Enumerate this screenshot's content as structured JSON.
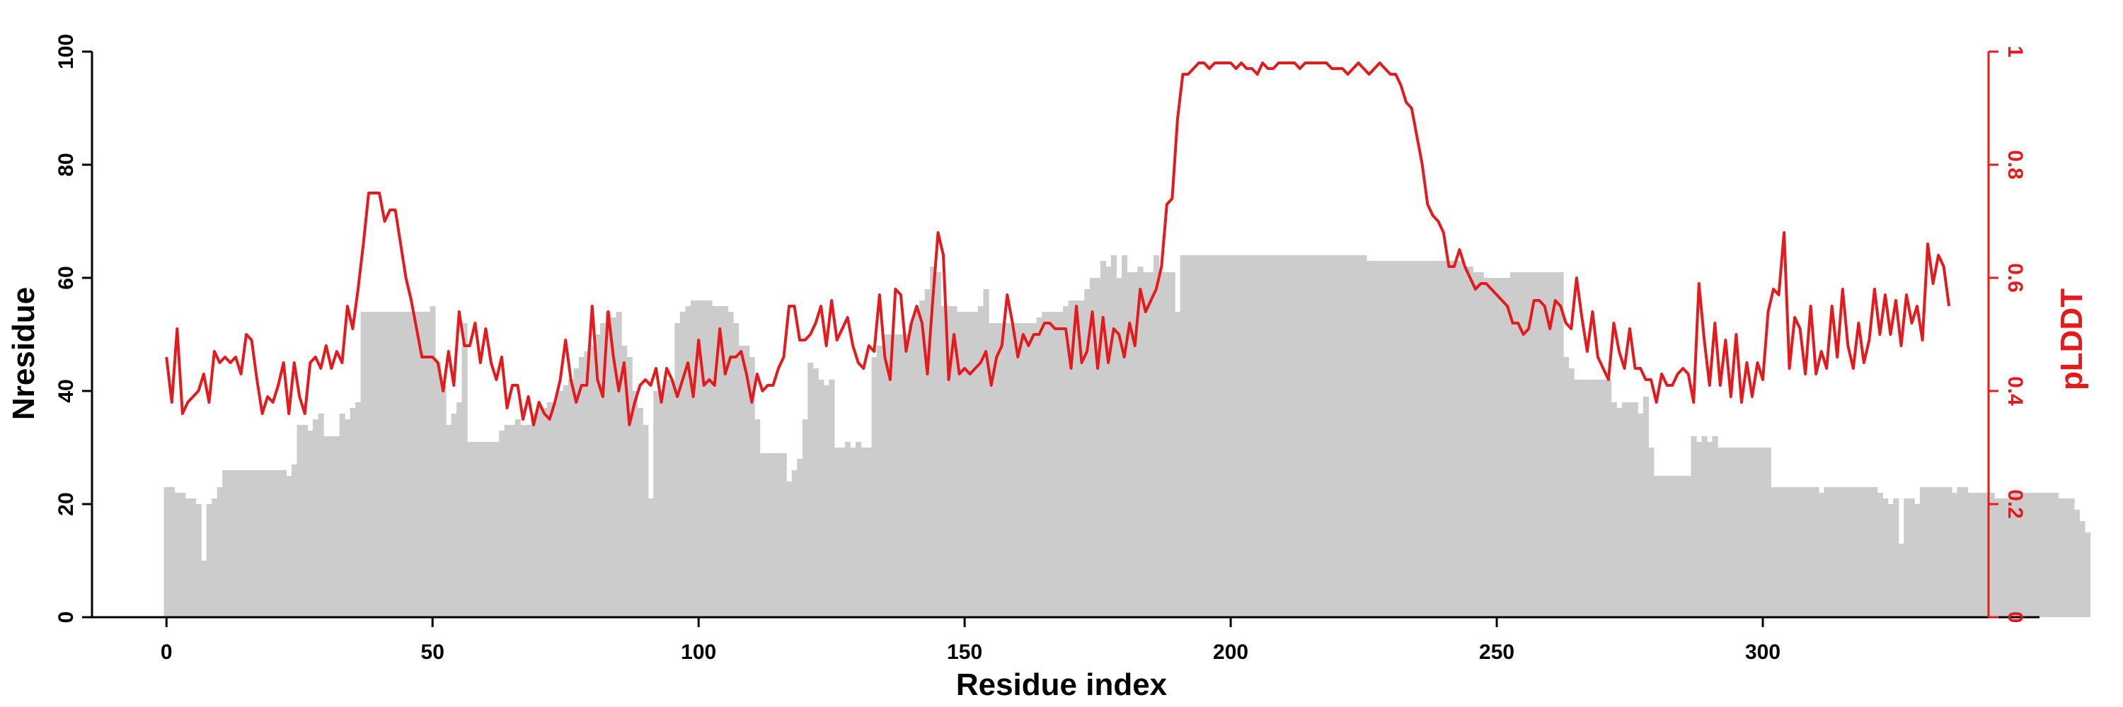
{
  "chart_data": {
    "type": "bar+line",
    "xlabel": "Residue index",
    "ylabel_left": "Nresidue",
    "ylabel_right": "pLDDT",
    "xlim": [
      -14,
      352
    ],
    "ylim_left": [
      0,
      100
    ],
    "ylim_right": [
      0,
      1
    ],
    "x_ticks": [
      "0",
      "50",
      "100",
      "150",
      "200",
      "250",
      "300"
    ],
    "y_left_ticks": [
      "0",
      "20",
      "40",
      "60",
      "80",
      "100"
    ],
    "y_right_ticks": [
      "0",
      "0.2",
      "0.4",
      "0.6",
      "0.8",
      "1"
    ],
    "colors": {
      "bar": "#cccccc",
      "line": "#e41a1c",
      "axis": "#000000"
    },
    "grid": false,
    "legend": "none",
    "series": [
      {
        "kind": "bar",
        "axis": "left",
        "x_start": 0,
        "values": [
          23,
          23,
          22,
          22,
          21,
          21,
          20,
          10,
          20,
          21,
          23,
          26,
          26,
          26,
          26,
          26,
          26,
          26,
          26,
          26,
          26,
          26,
          26,
          25,
          27,
          34,
          34,
          33,
          35,
          36,
          32,
          32,
          32,
          36,
          35,
          37,
          38,
          54,
          54,
          54,
          54,
          54,
          54,
          54,
          54,
          54,
          54,
          54,
          54,
          54,
          55,
          45,
          41,
          34,
          36,
          38,
          52,
          31,
          31,
          31,
          31,
          31,
          31,
          33,
          34,
          34,
          35,
          34,
          34,
          36,
          37,
          37,
          38,
          38,
          40,
          41,
          42,
          44,
          46,
          47,
          48,
          50,
          52,
          54,
          53,
          54,
          48,
          46,
          40,
          37,
          34,
          21,
          40,
          40,
          42,
          42,
          52,
          54,
          55,
          56,
          56,
          56,
          56,
          55,
          55,
          55,
          54,
          52,
          48,
          48,
          46,
          35,
          29,
          29,
          29,
          29,
          29,
          24,
          26,
          28,
          35,
          45,
          44,
          42,
          41,
          42,
          30,
          30,
          31,
          30,
          31,
          30,
          30,
          46,
          48,
          50,
          50,
          50,
          50,
          50,
          52,
          54,
          56,
          58,
          62,
          61,
          55,
          55,
          55,
          54,
          54,
          54,
          54,
          55,
          58,
          52,
          52,
          52,
          52,
          52,
          52,
          52,
          52,
          52,
          53,
          54,
          54,
          54,
          54,
          55,
          56,
          56,
          56,
          58,
          60,
          60,
          63,
          62,
          64,
          60,
          64,
          61,
          61,
          62,
          61,
          61,
          64,
          61,
          61,
          61,
          54,
          64,
          64,
          64,
          64,
          64,
          64,
          64,
          64,
          64,
          64,
          64,
          64,
          64,
          64,
          64,
          64,
          64,
          64,
          64,
          64,
          64,
          64,
          64,
          64,
          64,
          64,
          64,
          64,
          64,
          64,
          64,
          64,
          64,
          64,
          64,
          63,
          63,
          63,
          63,
          63,
          63,
          63,
          63,
          63,
          63,
          63,
          63,
          63,
          63,
          63,
          63,
          63,
          63,
          62,
          62,
          61,
          61,
          60,
          60,
          60,
          60,
          60,
          61,
          61,
          61,
          61,
          61,
          61,
          61,
          61,
          61,
          61,
          46,
          44,
          42,
          42,
          42,
          42,
          42,
          42,
          42,
          38,
          37,
          38,
          38,
          38,
          36,
          39,
          30,
          25,
          25,
          25,
          25,
          25,
          25,
          25,
          32,
          31,
          32,
          31,
          32,
          30,
          30,
          30,
          30,
          30,
          30,
          30,
          30,
          30,
          30,
          23,
          23,
          23,
          23,
          23,
          23,
          23,
          23,
          23,
          22,
          23,
          23,
          23,
          23,
          23,
          23,
          23,
          23,
          23,
          23,
          22,
          21,
          20,
          21,
          13,
          21,
          21,
          20,
          23,
          23,
          23,
          23,
          23,
          23,
          22,
          23,
          23,
          22,
          22,
          22,
          22,
          22,
          21,
          21,
          21,
          22,
          22,
          22,
          22,
          22,
          22,
          22,
          22,
          22,
          21,
          21,
          21,
          19,
          17,
          15
        ]
      },
      {
        "kind": "line",
        "axis": "right",
        "x_start": 0,
        "values": [
          0.46,
          0.38,
          0.51,
          0.36,
          0.38,
          0.39,
          0.4,
          0.43,
          0.38,
          0.47,
          0.45,
          0.46,
          0.45,
          0.46,
          0.43,
          0.5,
          0.49,
          0.42,
          0.36,
          0.39,
          0.38,
          0.41,
          0.45,
          0.36,
          0.45,
          0.39,
          0.36,
          0.45,
          0.46,
          0.44,
          0.48,
          0.44,
          0.47,
          0.45,
          0.55,
          0.51,
          0.58,
          0.66,
          0.75,
          0.75,
          0.75,
          0.7,
          0.72,
          0.72,
          0.66,
          0.6,
          0.56,
          0.51,
          0.46,
          0.46,
          0.46,
          0.45,
          0.4,
          0.47,
          0.41,
          0.54,
          0.48,
          0.48,
          0.52,
          0.45,
          0.51,
          0.45,
          0.42,
          0.46,
          0.37,
          0.41,
          0.41,
          0.35,
          0.39,
          0.34,
          0.38,
          0.36,
          0.35,
          0.38,
          0.42,
          0.49,
          0.42,
          0.38,
          0.41,
          0.41,
          0.55,
          0.42,
          0.39,
          0.54,
          0.46,
          0.4,
          0.45,
          0.34,
          0.38,
          0.41,
          0.42,
          0.41,
          0.44,
          0.38,
          0.44,
          0.42,
          0.39,
          0.42,
          0.45,
          0.39,
          0.49,
          0.41,
          0.42,
          0.41,
          0.51,
          0.43,
          0.46,
          0.46,
          0.47,
          0.43,
          0.38,
          0.43,
          0.4,
          0.41,
          0.41,
          0.44,
          0.46,
          0.55,
          0.55,
          0.49,
          0.49,
          0.5,
          0.52,
          0.55,
          0.48,
          0.56,
          0.49,
          0.51,
          0.53,
          0.48,
          0.45,
          0.44,
          0.48,
          0.47,
          0.57,
          0.46,
          0.42,
          0.58,
          0.57,
          0.47,
          0.52,
          0.55,
          0.52,
          0.43,
          0.56,
          0.68,
          0.64,
          0.42,
          0.5,
          0.43,
          0.44,
          0.43,
          0.44,
          0.45,
          0.47,
          0.41,
          0.46,
          0.48,
          0.57,
          0.52,
          0.46,
          0.5,
          0.48,
          0.5,
          0.5,
          0.52,
          0.52,
          0.51,
          0.51,
          0.51,
          0.44,
          0.55,
          0.45,
          0.47,
          0.54,
          0.44,
          0.53,
          0.45,
          0.51,
          0.5,
          0.46,
          0.52,
          0.48,
          0.58,
          0.54,
          0.56,
          0.58,
          0.62,
          0.73,
          0.74,
          0.88,
          0.96,
          0.96,
          0.97,
          0.98,
          0.98,
          0.97,
          0.98,
          0.98,
          0.98,
          0.98,
          0.97,
          0.98,
          0.97,
          0.97,
          0.96,
          0.98,
          0.97,
          0.97,
          0.98,
          0.98,
          0.98,
          0.98,
          0.97,
          0.98,
          0.98,
          0.98,
          0.98,
          0.98,
          0.97,
          0.97,
          0.97,
          0.96,
          0.97,
          0.98,
          0.97,
          0.96,
          0.97,
          0.98,
          0.97,
          0.96,
          0.96,
          0.94,
          0.91,
          0.9,
          0.85,
          0.8,
          0.73,
          0.71,
          0.7,
          0.68,
          0.62,
          0.62,
          0.65,
          0.62,
          0.6,
          0.58,
          0.59,
          0.59,
          0.58,
          0.57,
          0.56,
          0.55,
          0.52,
          0.52,
          0.5,
          0.51,
          0.56,
          0.56,
          0.55,
          0.51,
          0.56,
          0.55,
          0.52,
          0.51,
          0.6,
          0.53,
          0.47,
          0.54,
          0.46,
          0.44,
          0.42,
          0.52,
          0.47,
          0.44,
          0.51,
          0.44,
          0.44,
          0.42,
          0.42,
          0.38,
          0.43,
          0.41,
          0.41,
          0.43,
          0.44,
          0.43,
          0.38,
          0.59,
          0.49,
          0.41,
          0.52,
          0.41,
          0.49,
          0.39,
          0.5,
          0.38,
          0.45,
          0.39,
          0.45,
          0.42,
          0.54,
          0.58,
          0.57,
          0.68,
          0.44,
          0.53,
          0.51,
          0.43,
          0.55,
          0.43,
          0.47,
          0.44,
          0.55,
          0.46,
          0.58,
          0.48,
          0.44,
          0.52,
          0.45,
          0.49,
          0.58,
          0.5,
          0.57,
          0.5,
          0.56,
          0.48,
          0.57,
          0.52,
          0.55,
          0.49,
          0.66,
          0.59,
          0.64,
          0.62,
          0.55
        ]
      }
    ]
  }
}
